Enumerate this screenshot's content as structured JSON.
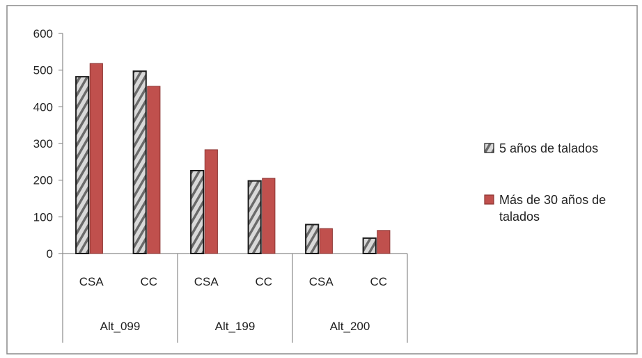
{
  "chart_data": {
    "type": "bar",
    "groups": [
      {
        "label": "Alt_099",
        "categories": [
          "CSA",
          "CC"
        ]
      },
      {
        "label": "Alt_199",
        "categories": [
          "CSA",
          "CC"
        ]
      },
      {
        "label": "Alt_200",
        "categories": [
          "CSA",
          "CC"
        ]
      }
    ],
    "series": [
      {
        "name": "5 años de talados",
        "values": [
          482,
          497,
          226,
          198,
          79,
          42
        ],
        "color": "#d9d9d9",
        "pattern": "diagonal-hatch"
      },
      {
        "name": "Más de 30 años de talados",
        "values": [
          518,
          456,
          283,
          205,
          68,
          63
        ],
        "color": "#c0504d"
      }
    ],
    "yticks": [
      0,
      100,
      200,
      300,
      400,
      500,
      600
    ],
    "ylim": [
      0,
      600
    ],
    "grid": false,
    "legend_position": "right",
    "title": "",
    "xlabel": "",
    "ylabel": ""
  }
}
